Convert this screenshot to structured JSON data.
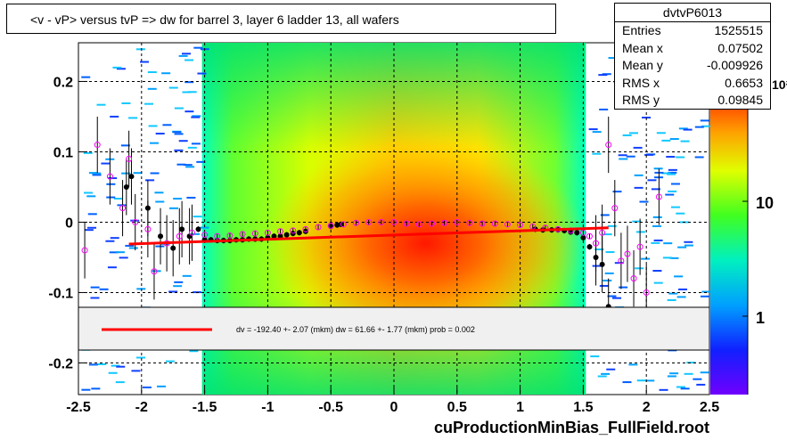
{
  "chart_data": {
    "type": "scatter",
    "title": "<v - vP>       versus  tvP =>  dw for barrel 3, layer 6 ladder 13, all wafers",
    "xlabel": "",
    "ylabel": "",
    "xlim": [
      -2.5,
      2.5
    ],
    "ylim": [
      -0.245,
      0.255
    ],
    "x_ticks": [
      -2.5,
      -2,
      -1.5,
      -1,
      -0.5,
      0,
      0.5,
      1,
      1.5,
      2,
      2.5
    ],
    "x_tick_labels": [
      "-2.5",
      "-2",
      "-1.5",
      "-1",
      "-0.5",
      "0",
      "0.5",
      "1",
      "1.5",
      "2",
      "2.5"
    ],
    "y_ticks": [
      -0.2,
      -0.1,
      0,
      0.1,
      0.2
    ],
    "y_tick_labels": [
      "-0.2",
      "-0.1",
      "0",
      "0.1",
      "0.2"
    ],
    "grid": true,
    "colorbar": {
      "scale": "log",
      "tick_labels": [
        "1",
        "10"
      ],
      "partial_label": "10²"
    },
    "stats": {
      "name": "dvtvP6013",
      "rows": [
        {
          "label": "Entries",
          "value": "1525515"
        },
        {
          "label": "Mean x",
          "value": "0.07502"
        },
        {
          "label": "Mean y",
          "value": "-0.009926"
        },
        {
          "label": "RMS x",
          "value": "0.6653"
        },
        {
          "label": "RMS y",
          "value": "0.09845"
        }
      ]
    },
    "fit": {
      "text": "dv = -192.40 +-  2.07 (mkm) dw =   61.66 +-  1.77 (mkm) prob = 0.002",
      "line_color": "#ff0000",
      "x_range": [
        -2.1,
        1.7
      ],
      "y_start": -0.031,
      "y_end": -0.008
    },
    "series": [
      {
        "marker": "filled-circle",
        "color": "#000000",
        "x": [
          -2.12,
          -2.08,
          -1.95,
          -1.85,
          -1.75,
          -1.68,
          -1.62,
          -1.55,
          -1.5,
          -1.45,
          -1.4,
          -1.35,
          -1.3,
          -1.25,
          -1.2,
          -1.15,
          -1.1,
          -1.05,
          -1.0,
          -0.95,
          -0.9,
          -0.85,
          -0.8,
          -0.75,
          -0.7,
          -0.5,
          -0.45,
          -0.42,
          1.12,
          1.18,
          1.25,
          1.3,
          1.35,
          1.4,
          1.45,
          1.5,
          1.55,
          1.6,
          1.65,
          1.7
        ],
        "y": [
          0.05,
          0.065,
          0.02,
          -0.02,
          -0.037,
          -0.01,
          -0.02,
          -0.01,
          -0.025,
          -0.025,
          -0.026,
          -0.026,
          -0.026,
          -0.025,
          -0.025,
          -0.024,
          -0.024,
          -0.024,
          -0.022,
          -0.02,
          -0.02,
          -0.018,
          -0.016,
          -0.015,
          -0.013,
          -0.006,
          -0.004,
          -0.003,
          -0.01,
          -0.011,
          -0.011,
          -0.011,
          -0.012,
          -0.014,
          -0.015,
          -0.022,
          -0.035,
          -0.05,
          -0.06,
          -0.12
        ]
      },
      {
        "marker": "open-circle",
        "color": "#ff00ff",
        "x": [
          -2.45,
          -2.35,
          -2.25,
          -2.15,
          -2.1,
          -2.05,
          -1.95,
          -1.9,
          -1.8,
          -1.7,
          -1.6,
          -1.5,
          -1.4,
          -1.3,
          -1.2,
          -1.1,
          -1.0,
          -0.9,
          -0.8,
          -0.7,
          -0.6,
          -0.5,
          -0.4,
          -0.3,
          -0.2,
          -0.1,
          0.0,
          0.1,
          0.2,
          0.3,
          0.4,
          0.5,
          0.6,
          0.7,
          0.8,
          0.9,
          1.0,
          1.1,
          1.2,
          1.3,
          1.4,
          1.5,
          1.55,
          1.6,
          1.65,
          1.7,
          1.75,
          1.8,
          1.85,
          1.9,
          1.95,
          2.0,
          2.1
        ],
        "y": [
          -0.04,
          0.11,
          0.065,
          0.02,
          0.09,
          0.0,
          -0.01,
          -0.07,
          -0.03,
          -0.02,
          -0.015,
          -0.018,
          -0.02,
          -0.019,
          -0.017,
          -0.016,
          -0.015,
          -0.013,
          -0.012,
          -0.01,
          -0.007,
          -0.005,
          -0.003,
          -0.001,
          0.0,
          0.0,
          0.0,
          -0.002,
          -0.003,
          -0.002,
          -0.001,
          0.0,
          -0.001,
          -0.002,
          -0.002,
          -0.003,
          -0.004,
          -0.006,
          -0.008,
          -0.01,
          -0.012,
          -0.015,
          -0.02,
          -0.03,
          -0.015,
          0.11,
          0.02,
          -0.055,
          -0.045,
          -0.08,
          -0.035,
          -0.1,
          0.036
        ]
      }
    ]
  },
  "footer": "cuProductionMinBias_FullField.root"
}
